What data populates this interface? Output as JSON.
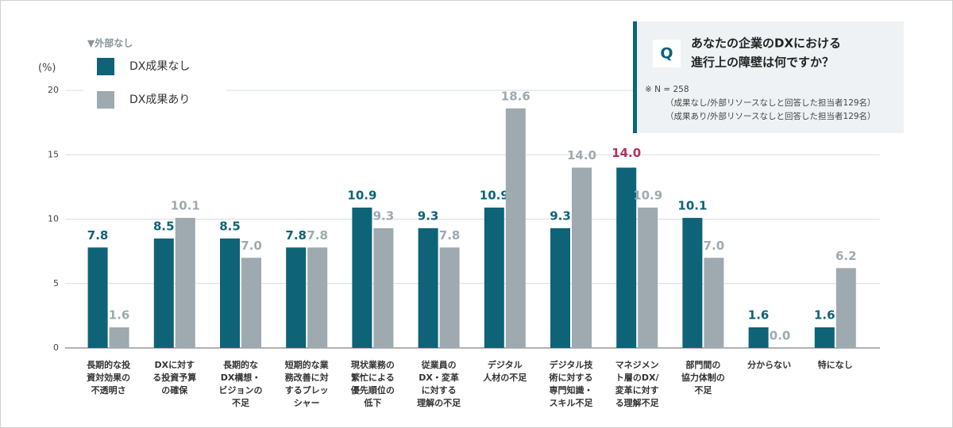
{
  "chart_data": {
    "type": "bar",
    "y_label": "(%)",
    "legend_title": "▼外部なし",
    "categories": [
      [
        "長期的な投",
        "資対効果の",
        "不透明さ"
      ],
      [
        "DXに対す",
        "る投資予算",
        "の確保"
      ],
      [
        "長期的な",
        "DX構想・",
        "ビジョンの",
        "不足"
      ],
      [
        "短期的な業",
        "務改善に対",
        "するプレッ",
        "シャー"
      ],
      [
        "現状業務の",
        "繁忙による",
        "優先順位の",
        "低下"
      ],
      [
        "従業員の",
        "DX・変革",
        "に対する",
        "理解の不足"
      ],
      [
        "デジタル",
        "人材の不足"
      ],
      [
        "デジタル技",
        "術に対する",
        "専門知識・",
        "スキル不足"
      ],
      [
        "マネジメン",
        "ト層のDX/",
        "変革に対す",
        "る理解不足"
      ],
      [
        "部門間の",
        "協力体制の",
        "不足"
      ],
      [
        "分からない"
      ],
      [
        "特になし"
      ]
    ],
    "series": [
      {
        "name": "DX成果なし",
        "color": "#0e6377",
        "values": [
          7.8,
          8.5,
          8.5,
          7.8,
          10.9,
          9.3,
          10.9,
          9.3,
          14.0,
          10.1,
          1.6,
          1.6
        ],
        "value_labels": [
          "7.8",
          "8.5",
          "8.5",
          "7.8",
          "10.9",
          "9.3",
          "10.9",
          "9.3",
          "14.0",
          "10.1",
          "1.6",
          "1.6"
        ]
      },
      {
        "name": "DX成果あり",
        "color": "#9eaab0",
        "values": [
          1.6,
          10.1,
          7.0,
          7.8,
          9.3,
          7.8,
          18.6,
          14.0,
          10.9,
          7.0,
          0.0,
          6.2
        ],
        "value_labels": [
          "1.6",
          "10.1",
          "7.0",
          "7.8",
          "9.3",
          "7.8",
          "18.6",
          "14.0",
          "10.9",
          "7.0",
          "0.0",
          "6.2"
        ]
      }
    ],
    "highlight_index": 8,
    "highlight_color": "#b0325a",
    "ylim": [
      0,
      20
    ],
    "yticks": [
      0,
      5,
      10,
      15,
      20
    ],
    "grid": true,
    "question": {
      "mark": "Q",
      "lines": [
        "あなたの企業のDXにおける",
        "進行上の障壁は何ですか？"
      ],
      "notes": [
        "※ N = 258",
        "（成果なし/外部リソースなしと回答した担当者129名）",
        "（成果あり/外部リソースなしと回答した担当者129名）"
      ]
    }
  }
}
